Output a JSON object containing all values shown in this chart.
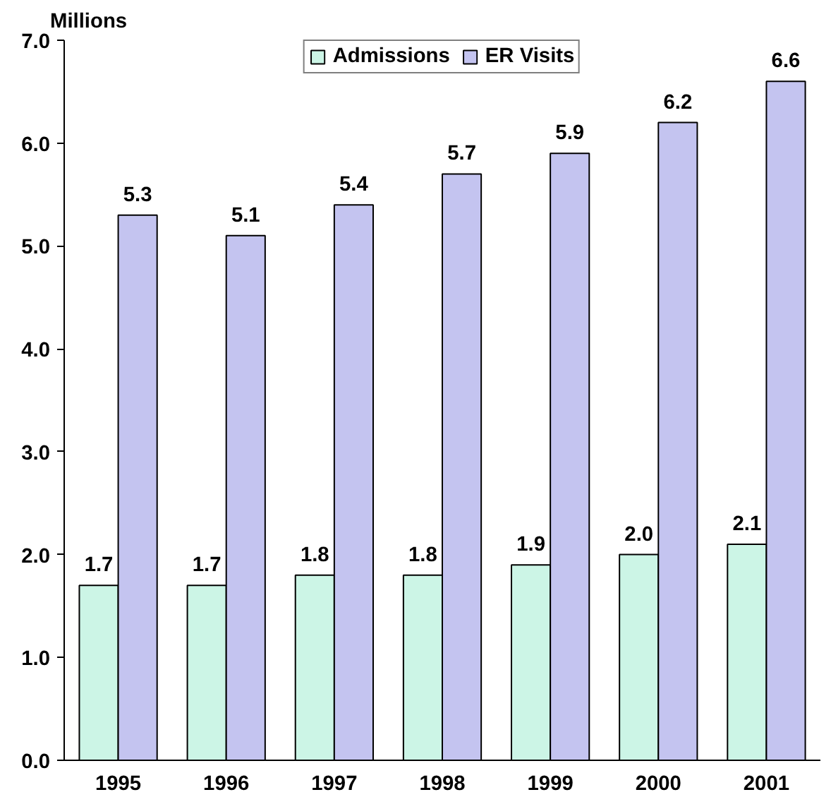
{
  "chart_data": {
    "type": "bar",
    "ylabel": "Millions",
    "categories": [
      "1995",
      "1996",
      "1997",
      "1998",
      "1999",
      "2000",
      "2001"
    ],
    "series": [
      {
        "name": "Admissions",
        "color": "#ccf5e6",
        "values": [
          1.7,
          1.7,
          1.8,
          1.8,
          1.9,
          2.0,
          2.1
        ],
        "value_labels": [
          "1.7",
          "1.7",
          "1.8",
          "1.8",
          "1.9",
          "2.0",
          "2.1"
        ]
      },
      {
        "name": "ER Visits",
        "color": "#c4c4f0",
        "values": [
          5.3,
          5.1,
          5.4,
          5.7,
          5.9,
          6.2,
          6.6
        ],
        "value_labels": [
          "5.3",
          "5.1",
          "5.4",
          "5.7",
          "5.9",
          "6.2",
          "6.6"
        ]
      }
    ],
    "ylim": [
      0,
      7
    ],
    "yticks": [
      {
        "value": 0,
        "label": "0.0"
      },
      {
        "value": 1,
        "label": "1.0"
      },
      {
        "value": 2,
        "label": "2.0"
      },
      {
        "value": 3,
        "label": "3.0"
      },
      {
        "value": 4,
        "label": "4.0"
      },
      {
        "value": 5,
        "label": "5.0"
      },
      {
        "value": 6,
        "label": "6.0"
      },
      {
        "value": 7,
        "label": "7.0"
      }
    ],
    "grid": false,
    "legend": "top"
  }
}
